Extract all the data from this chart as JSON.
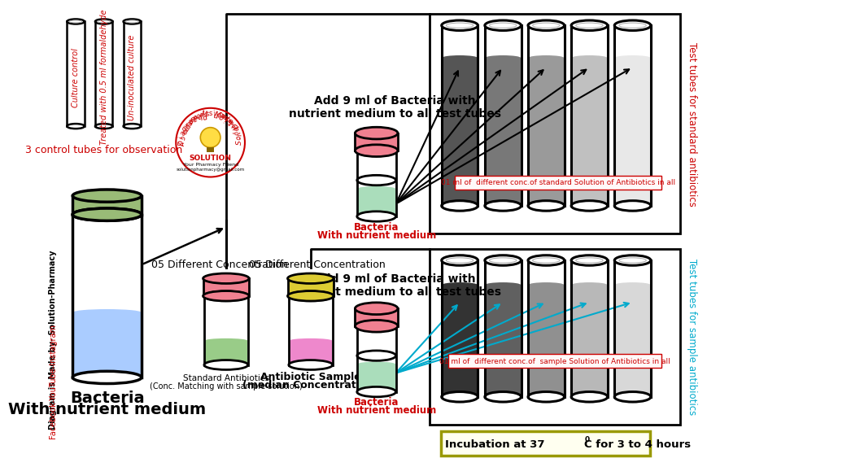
{
  "bg_color": "#ffffff",
  "control_tube_labels": [
    "Culture control",
    "Treated with 0.5 ml formaldehyde",
    "Un-inoculated culture"
  ],
  "control_tubes_caption": "3 control tubes for observation",
  "bacteria_bottle_label": "Bacteria\nWith nutrient medium",
  "standard_antibiotics_label": "Standard Antibiotics\n(Conc. Matching with sample solution)",
  "antibiotic_sample_label": "Antibiotic Sample\n(median Concentration)",
  "add_bacteria_text_top": "Add 9 ml of Bacteria with\nnutrient medium to all test tubes",
  "add_bacteria_text_bottom": "Add 9 ml of Bacteria with\nnutrient medium to all test tubes",
  "diff_conc_left": "05 Different Concentration",
  "diff_conc_right": "05 Different Concentration",
  "standard_arrow_text": "01 ml of  different conc.of standard Solution of Antibiotics in all",
  "sample_arrow_text": "01 ml of  different conc.of  sample Solution of Antibiotics in all",
  "right_label_top": "Test tubes for standard antibiotics",
  "right_label_bottom": "Test tubes for sample antibiotics",
  "incubation_text": "Incubation at 37",
  "incubation_text2": "C for 3 to 4 hours",
  "red_color": "#cc0000",
  "cyan_color": "#00aacc",
  "watermark_top": "Diagram is Made by-",
  "watermark_bottom": "Solution Pharmacy",
  "watermark_left": "Diagram is Made by- Solution-Pharmacy",
  "watermark_left2": "Facebook-YouTube-Instagram",
  "gray_fills_top": [
    "#555555",
    "#787878",
    "#9a9a9a",
    "#c0c0c0",
    "#e8e8e8"
  ],
  "gray_fills_bot": [
    "#333333",
    "#606060",
    "#909090",
    "#b8b8b8",
    "#d8d8d8"
  ]
}
